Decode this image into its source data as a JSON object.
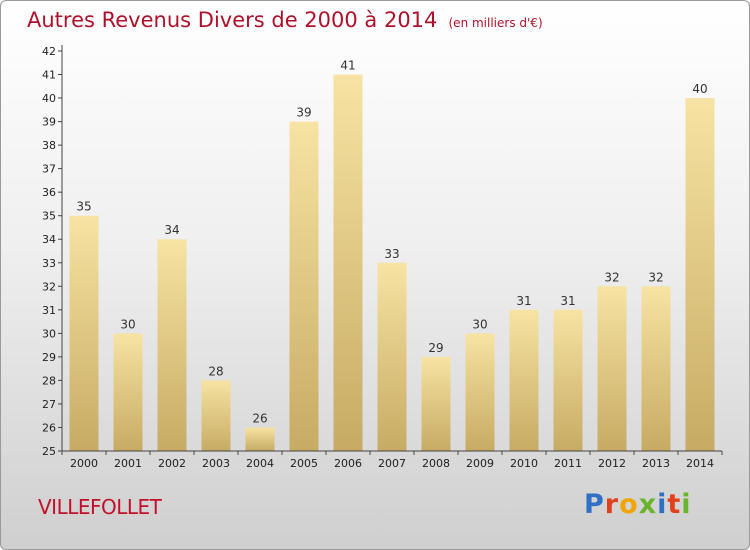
{
  "title": "Autres Revenus Divers de 2000 à 2014",
  "subtitle": "(en milliers d'€)",
  "town": "VILLEFOLLET",
  "logo": {
    "text": "Proxiti",
    "letters": [
      {
        "ch": "P",
        "color": "#2f6fc4"
      },
      {
        "ch": "r",
        "color": "#e0411b"
      },
      {
        "ch": "o",
        "color": "#f2a500"
      },
      {
        "ch": "x",
        "color": "#6ab42d"
      },
      {
        "ch": "i",
        "color": "#2f6fc4"
      },
      {
        "ch": "t",
        "color": "#e0411b"
      },
      {
        "ch": "i",
        "color": "#6ab42d"
      }
    ]
  },
  "colors": {
    "title": "#b0112a",
    "bar_top": "#f7e3a3",
    "bar_bottom": "#c7ab63",
    "axis": "#444444"
  },
  "chart_data": {
    "type": "bar",
    "categories": [
      "2000",
      "2001",
      "2002",
      "2003",
      "2004",
      "2005",
      "2006",
      "2007",
      "2008",
      "2009",
      "2010",
      "2011",
      "2012",
      "2013",
      "2014"
    ],
    "values": [
      35,
      30,
      34,
      28,
      26,
      39,
      41,
      33,
      29,
      30,
      31,
      31,
      32,
      32,
      40
    ],
    "title": "Autres Revenus Divers de 2000 à 2014",
    "subtitle": "(en milliers d'€)",
    "xlabel": "",
    "ylabel": "",
    "ylim": [
      25,
      42
    ],
    "yticks": [
      25,
      26,
      27,
      28,
      29,
      30,
      31,
      32,
      33,
      34,
      35,
      36,
      37,
      38,
      39,
      40,
      41,
      42
    ],
    "grid": false,
    "legend": "none",
    "data_labels": true
  }
}
